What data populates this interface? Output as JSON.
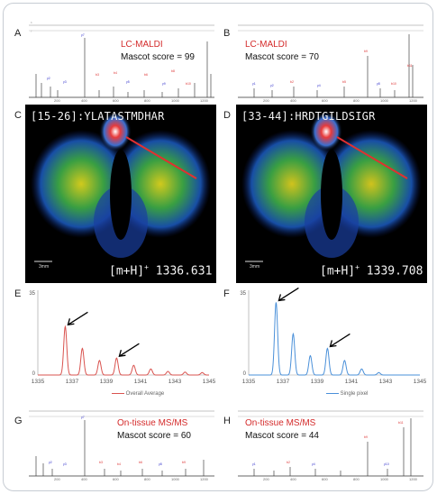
{
  "panels": {
    "A": {
      "letter": "A",
      "title": "LC-MALDI",
      "score": "Mascot score = 99"
    },
    "B": {
      "letter": "B",
      "title": "LC-MALDI",
      "score": "Mascot score = 70"
    },
    "C": {
      "letter": "C",
      "peptide": "[15-26]:YLATASTMDHAR",
      "mz_prefix": "[m+H]",
      "mz_sup": "+",
      "mz_value": "1336.631",
      "scale": "3mm"
    },
    "D": {
      "letter": "D",
      "peptide": "[33-44]:HRDTGILDSIGR",
      "mz_prefix": "[m+H]",
      "mz_sup": "+",
      "mz_value": "1339.708",
      "scale": "3mm"
    },
    "E": {
      "letter": "E",
      "legend": "Overall Average",
      "color": "#d9534f"
    },
    "F": {
      "letter": "F",
      "legend": "Single pixel",
      "color": "#4a90d9"
    },
    "G": {
      "letter": "G",
      "title": "On-tissue MS/MS",
      "score": "Mascot score = 60"
    },
    "H": {
      "letter": "H",
      "title": "On-tissue MS/MS",
      "score": "Mascot score = 44"
    }
  },
  "isotope_axes": {
    "x_ticks": [
      "1335",
      "1337",
      "1339",
      "1341",
      "1343",
      "1345"
    ],
    "y_top": "35",
    "y_zero": "0"
  },
  "chart_data": [
    {
      "type": "line",
      "panel": "E",
      "x_range": [
        1335,
        1345
      ],
      "y_range": [
        0,
        35
      ],
      "peaks": [
        {
          "x": 1336.6,
          "y": 20
        },
        {
          "x": 1337.6,
          "y": 11
        },
        {
          "x": 1338.6,
          "y": 6
        },
        {
          "x": 1339.6,
          "y": 7
        },
        {
          "x": 1340.6,
          "y": 4
        },
        {
          "x": 1341.6,
          "y": 2.5
        },
        {
          "x": 1342.6,
          "y": 1.5
        },
        {
          "x": 1343.6,
          "y": 1.2
        },
        {
          "x": 1344.6,
          "y": 1
        }
      ]
    },
    {
      "type": "line",
      "panel": "F",
      "x_range": [
        1335,
        1345
      ],
      "y_range": [
        0,
        35
      ],
      "peaks": [
        {
          "x": 1336.6,
          "y": 30
        },
        {
          "x": 1337.6,
          "y": 17
        },
        {
          "x": 1338.6,
          "y": 8
        },
        {
          "x": 1339.6,
          "y": 11
        },
        {
          "x": 1340.6,
          "y": 6
        },
        {
          "x": 1341.6,
          "y": 2.5
        },
        {
          "x": 1342.6,
          "y": 1
        }
      ]
    }
  ]
}
